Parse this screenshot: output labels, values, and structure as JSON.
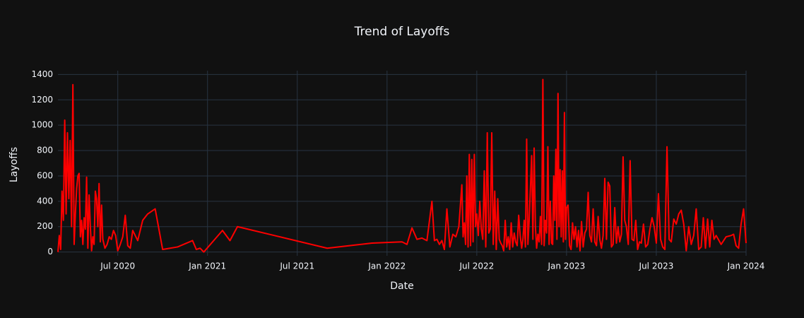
{
  "chart_data": {
    "type": "line",
    "title": "Trend of Layoffs",
    "x_label": "Date",
    "y_label": "Layoffs",
    "x": [
      "2020-03",
      "2020-03",
      "2020-03",
      "2020-03",
      "2020-03",
      "2020-03",
      "2020-03",
      "2020-03",
      "2020-03",
      "2020-03",
      "2020-03",
      "2020-04",
      "2020-04",
      "2020-04",
      "2020-04",
      "2020-04",
      "2020-04",
      "2020-04",
      "2020-04",
      "2020-04",
      "2020-04",
      "2020-04",
      "2020-04",
      "2020-05",
      "2020-05",
      "2020-05",
      "2020-05",
      "2020-05",
      "2020-05",
      "2020-05",
      "2020-05",
      "2020-05",
      "2020-05",
      "2020-05",
      "2020-05",
      "2020-06",
      "2020-06",
      "2020-06",
      "2020-06",
      "2020-06",
      "2020-06",
      "2020-06",
      "2020-07",
      "2020-07",
      "2020-07",
      "2020-07",
      "2020-07",
      "2020-07",
      "2020-08",
      "2020-08",
      "2020-08",
      "2020-09",
      "2020-09",
      "2020-10",
      "2020-11",
      "2020-12",
      "2020-12",
      "2020-12",
      "2020-12",
      "2021-02",
      "2021-02",
      "2021-03",
      "2021-09",
      "2021-12",
      "2022-02",
      "2022-02",
      "2022-02",
      "2022-03",
      "2022-03",
      "2022-03",
      "2022-04",
      "2022-04",
      "2022-04",
      "2022-04",
      "2022-04",
      "2022-04",
      "2022-05",
      "2022-05",
      "2022-05",
      "2022-05",
      "2022-05",
      "2022-06",
      "2022-06",
      "2022-06",
      "2022-06",
      "2022-06",
      "2022-06",
      "2022-06",
      "2022-06",
      "2022-06",
      "2022-06",
      "2022-06",
      "2022-06",
      "2022-07",
      "2022-07",
      "2022-07",
      "2022-07",
      "2022-07",
      "2022-07",
      "2022-07",
      "2022-07",
      "2022-07",
      "2022-07",
      "2022-08",
      "2022-08",
      "2022-08",
      "2022-08",
      "2022-08",
      "2022-08",
      "2022-08",
      "2022-08",
      "2022-08",
      "2022-08",
      "2022-09",
      "2022-09",
      "2022-09",
      "2022-09",
      "2022-09",
      "2022-09",
      "2022-09",
      "2022-09",
      "2022-09",
      "2022-09",
      "2022-10",
      "2022-10",
      "2022-10",
      "2022-10",
      "2022-10",
      "2022-10",
      "2022-10",
      "2022-10",
      "2022-10",
      "2022-10",
      "2022-10",
      "2022-10",
      "2022-11",
      "2022-11",
      "2022-11",
      "2022-11",
      "2022-11",
      "2022-11",
      "2022-11",
      "2022-11",
      "2022-11",
      "2022-11",
      "2022-11",
      "2022-11",
      "2022-12",
      "2022-12",
      "2022-12",
      "2022-12",
      "2022-12",
      "2022-12",
      "2022-12",
      "2022-12",
      "2022-12",
      "2022-12",
      "2022-12",
      "2022-12",
      "2022-12",
      "2022-12",
      "2023-01",
      "2023-01",
      "2023-01",
      "2023-01",
      "2023-01",
      "2023-01",
      "2023-01",
      "2023-01",
      "2023-01",
      "2023-01",
      "2023-02",
      "2023-02",
      "2023-02",
      "2023-02",
      "2023-02",
      "2023-02",
      "2023-02",
      "2023-02",
      "2023-02",
      "2023-03",
      "2023-03",
      "2023-03",
      "2023-03",
      "2023-03",
      "2023-03",
      "2023-03",
      "2023-03",
      "2023-03",
      "2023-04",
      "2023-04",
      "2023-04",
      "2023-04",
      "2023-04",
      "2023-04",
      "2023-04",
      "2023-04",
      "2023-04",
      "2023-05",
      "2023-05",
      "2023-05",
      "2023-05",
      "2023-05",
      "2023-05",
      "2023-05",
      "2023-05",
      "2023-06",
      "2023-06",
      "2023-06",
      "2023-06",
      "2023-06",
      "2023-06",
      "2023-06",
      "2023-07",
      "2023-07",
      "2023-07",
      "2023-07",
      "2023-07",
      "2023-07",
      "2023-07",
      "2023-08",
      "2023-08",
      "2023-08",
      "2023-08",
      "2023-08",
      "2023-08",
      "2023-09",
      "2023-09",
      "2023-09",
      "2023-09",
      "2023-09",
      "2023-09",
      "2023-10",
      "2023-10",
      "2023-10",
      "2023-10",
      "2023-10",
      "2023-10",
      "2023-10",
      "2023-11",
      "2023-11",
      "2023-11",
      "2023-12",
      "2023-12",
      "2023-12",
      "2023-12",
      "2023-12",
      "2023-12",
      "2024-01"
    ],
    "series": [
      {
        "name": "Layoffs",
        "color": "#ff0000",
        "values": [
          0,
          130,
          20,
          480,
          250,
          1040,
          300,
          940,
          420,
          880,
          200,
          1320,
          60,
          300,
          500,
          600,
          620,
          120,
          250,
          60,
          270,
          180,
          590,
          30,
          450,
          200,
          10,
          120,
          60,
          480,
          420,
          200,
          540,
          80,
          370,
          100,
          30,
          60,
          120,
          100,
          170,
          130,
          10,
          60,
          120,
          290,
          50,
          30,
          170,
          90,
          250,
          300,
          340,
          20,
          40,
          90,
          20,
          30,
          0,
          170,
          90,
          200,
          30,
          70,
          80,
          60,
          190,
          100,
          110,
          90,
          400,
          90,
          100,
          60,
          90,
          20,
          340,
          40,
          140,
          120,
          200,
          530,
          120,
          230,
          60,
          600,
          40,
          770,
          50,
          730,
          80,
          770,
          200,
          300,
          130,
          400,
          180,
          100,
          640,
          40,
          940,
          150,
          180,
          940,
          60,
          480,
          20,
          420,
          100,
          70,
          50,
          10,
          250,
          40,
          120,
          20,
          230,
          40,
          150,
          80,
          50,
          290,
          130,
          30,
          100,
          250,
          40,
          890,
          60,
          250,
          500,
          760,
          100,
          820,
          200,
          30,
          140,
          80,
          280,
          60,
          1360,
          50,
          250,
          150,
          830,
          60,
          400,
          70,
          60,
          600,
          250,
          810,
          100,
          1250,
          200,
          650,
          120,
          640,
          80,
          1100,
          100,
          350,
          370,
          50,
          20,
          230,
          100,
          200,
          40,
          170,
          10,
          240,
          40,
          150,
          180,
          470,
          130,
          80,
          340,
          80,
          50,
          280,
          100,
          30,
          130,
          580,
          100,
          550,
          520,
          40,
          60,
          350,
          70,
          200,
          80,
          140,
          750,
          250,
          200,
          60,
          720,
          100,
          90,
          250,
          20,
          80,
          70,
          220,
          40,
          60,
          180,
          270,
          200,
          70,
          460,
          100,
          40,
          20,
          830,
          100,
          80,
          260,
          220,
          300,
          330,
          220,
          10,
          200,
          60,
          130,
          340,
          20,
          40,
          270,
          30,
          260,
          40,
          250,
          100,
          130,
          60,
          120,
          130,
          140,
          50,
          30,
          220,
          340,
          70
        ]
      }
    ],
    "xlim": [
      "2020-03",
      "2024-01"
    ],
    "xticks": [
      {
        "value": "2020-07",
        "label": "Jul 2020"
      },
      {
        "value": "2021-01",
        "label": "Jan 2021"
      },
      {
        "value": "2021-07",
        "label": "Jul 2021"
      },
      {
        "value": "2022-01",
        "label": "Jan 2022"
      },
      {
        "value": "2022-07",
        "label": "Jul 2022"
      },
      {
        "value": "2023-01",
        "label": "Jan 2023"
      },
      {
        "value": "2023-07",
        "label": "Jul 2023"
      },
      {
        "value": "2024-01",
        "label": "Jan 2024"
      }
    ],
    "ylim": [
      -30,
      1430
    ],
    "yticks": [
      0,
      200,
      400,
      600,
      800,
      1000,
      1200,
      1400
    ],
    "grid": true
  }
}
